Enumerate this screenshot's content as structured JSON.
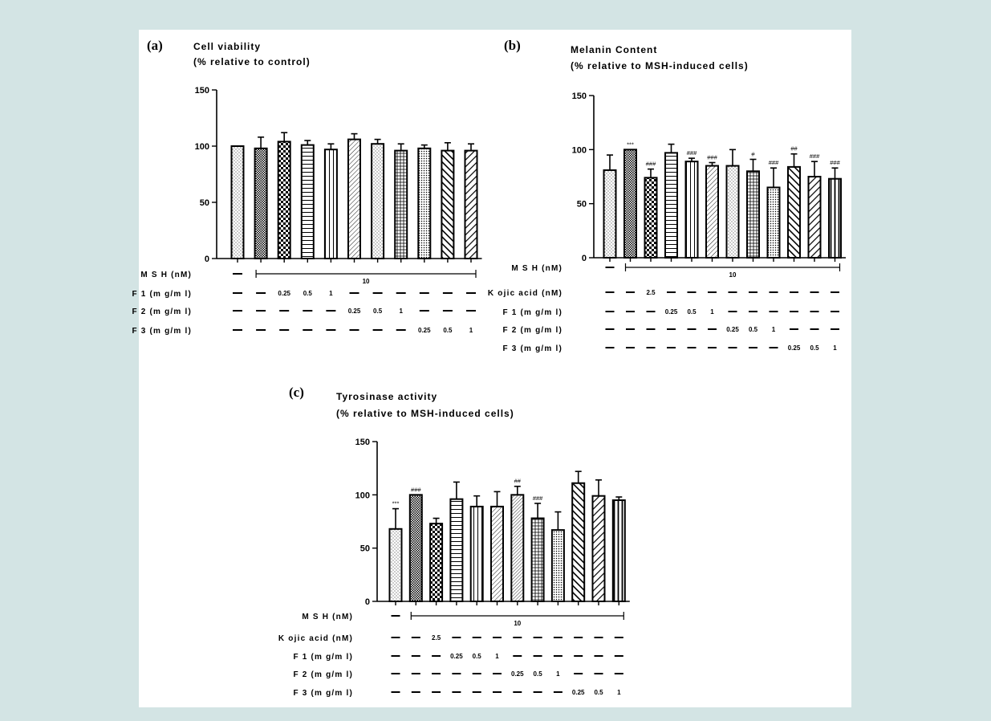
{
  "colors": {
    "page_background": "#d3e4e4",
    "panel_background": "#ffffff",
    "ink": "#000000"
  },
  "chart_data": [
    {
      "panel": "(a)",
      "type": "bar",
      "title": "Cell viability",
      "subtitle": "(% relative to control)",
      "ylim": [
        0,
        150
      ],
      "yticks": [
        "0",
        "50",
        "100",
        "150"
      ],
      "values": [
        100,
        98,
        104,
        101,
        97,
        106,
        102,
        96,
        98,
        96,
        96
      ],
      "errors": [
        0,
        10,
        8,
        4,
        5,
        5,
        4,
        6,
        3,
        7,
        6
      ],
      "patterns": [
        "dots",
        "checker-fine",
        "checker",
        "hlines",
        "vlines",
        "diag-fine",
        "dots",
        "grid",
        "dots-dense",
        "diag-bold",
        "diag-bold2"
      ],
      "significance": [
        "",
        "",
        "",
        "",
        "",
        "",
        "",
        "",
        "",
        "",
        ""
      ],
      "treatments": [
        {
          "label": "M S H  (nM)",
          "kind": "bracket",
          "value": "10",
          "start": 1
        },
        {
          "label": "F 1  (m g/m l)",
          "kind": "row",
          "cells": [
            "–",
            "–",
            "0.25",
            "0.5",
            "1",
            "–",
            "–",
            "–",
            "–",
            "–",
            "–"
          ]
        },
        {
          "label": "F 2  (m g/m l)",
          "kind": "row",
          "cells": [
            "–",
            "–",
            "–",
            "–",
            "–",
            "0.25",
            "0.5",
            "1",
            "–",
            "–",
            "–"
          ]
        },
        {
          "label": "F 3  (m g/m l)",
          "kind": "row",
          "cells": [
            "–",
            "–",
            "–",
            "–",
            "–",
            "–",
            "–",
            "–",
            "0.25",
            "0.5",
            "1"
          ]
        }
      ]
    },
    {
      "panel": "(b)",
      "type": "bar",
      "title": "Melanin Content",
      "subtitle": "(% relative to MSH-induced cells)",
      "ylim": [
        0,
        150
      ],
      "yticks": [
        "0",
        "50",
        "100",
        "150"
      ],
      "values": [
        81,
        100,
        74,
        97,
        89,
        85,
        85,
        80,
        65,
        84,
        75,
        73
      ],
      "errors": [
        14,
        0,
        8,
        8,
        3,
        3,
        15,
        11,
        18,
        12,
        14,
        10
      ],
      "patterns": [
        "dots",
        "checker-fine",
        "checker",
        "hlines",
        "vlines",
        "diag-fine",
        "dots",
        "grid",
        "dots-dense",
        "diag-bold",
        "diag-bold2",
        "vlines-bold"
      ],
      "significance": [
        "",
        "***",
        "###",
        "",
        "###",
        "###",
        "",
        "#",
        "###",
        "##",
        "###",
        "###"
      ],
      "treatments": [
        {
          "label": "M S H  (nM)",
          "kind": "bracket",
          "value": "10",
          "start": 1
        },
        {
          "label": "K ojic acid  (nM)",
          "kind": "row",
          "cells": [
            "–",
            "–",
            "2.5",
            "–",
            "–",
            "–",
            "–",
            "–",
            "–",
            "–",
            "–",
            "–"
          ]
        },
        {
          "label": "F 1  (m g/m l)",
          "kind": "row",
          "cells": [
            "–",
            "–",
            "–",
            "0.25",
            "0.5",
            "1",
            "–",
            "–",
            "–",
            "–",
            "–",
            "–"
          ]
        },
        {
          "label": "F 2  (m g/m l)",
          "kind": "row",
          "cells": [
            "–",
            "–",
            "–",
            "–",
            "–",
            "–",
            "0.25",
            "0.5",
            "1",
            "–",
            "–",
            "–"
          ]
        },
        {
          "label": "F 3  (m g/m l)",
          "kind": "row",
          "cells": [
            "–",
            "–",
            "–",
            "–",
            "–",
            "–",
            "–",
            "–",
            "–",
            "0.25",
            "0.5",
            "1"
          ]
        }
      ]
    },
    {
      "panel": "(c)",
      "type": "bar",
      "title": "Tyrosinase activity",
      "subtitle": "(% relative to MSH-induced cells)",
      "ylim": [
        0,
        150
      ],
      "yticks": [
        "0",
        "50",
        "100",
        "150"
      ],
      "values": [
        68,
        100,
        73,
        96,
        89,
        89,
        100,
        78,
        67,
        111,
        99,
        95
      ],
      "errors": [
        19,
        0,
        5,
        16,
        10,
        14,
        8,
        14,
        17,
        11,
        15,
        3
      ],
      "patterns": [
        "dots",
        "checker-fine",
        "checker",
        "hlines",
        "vlines",
        "diag-fine",
        "diag-fine2",
        "grid",
        "dots-dense",
        "diag-bold",
        "diag-bold2",
        "vlines-bold"
      ],
      "significance": [
        "***",
        "###",
        "",
        "",
        "",
        "",
        "##",
        "###",
        "",
        "",
        "",
        ""
      ],
      "treatments": [
        {
          "label": "M S H  (nM)",
          "kind": "bracket",
          "value": "10",
          "start": 1
        },
        {
          "label": "K ojic acid  (nM)",
          "kind": "row",
          "cells": [
            "–",
            "–",
            "2.5",
            "–",
            "–",
            "–",
            "–",
            "–",
            "–",
            "–",
            "–",
            "–"
          ]
        },
        {
          "label": "F 1  (m g/m l)",
          "kind": "row",
          "cells": [
            "–",
            "–",
            "–",
            "0.25",
            "0.5",
            "1",
            "–",
            "–",
            "–",
            "–",
            "–",
            "–"
          ]
        },
        {
          "label": "F 2  (m g/m l)",
          "kind": "row",
          "cells": [
            "–",
            "–",
            "–",
            "–",
            "–",
            "–",
            "0.25",
            "0.5",
            "1",
            "–",
            "–",
            "–"
          ]
        },
        {
          "label": "F 3  (m g/m l)",
          "kind": "row",
          "cells": [
            "–",
            "–",
            "–",
            "–",
            "–",
            "–",
            "–",
            "–",
            "–",
            "0.25",
            "0.5",
            "1"
          ]
        }
      ]
    }
  ]
}
